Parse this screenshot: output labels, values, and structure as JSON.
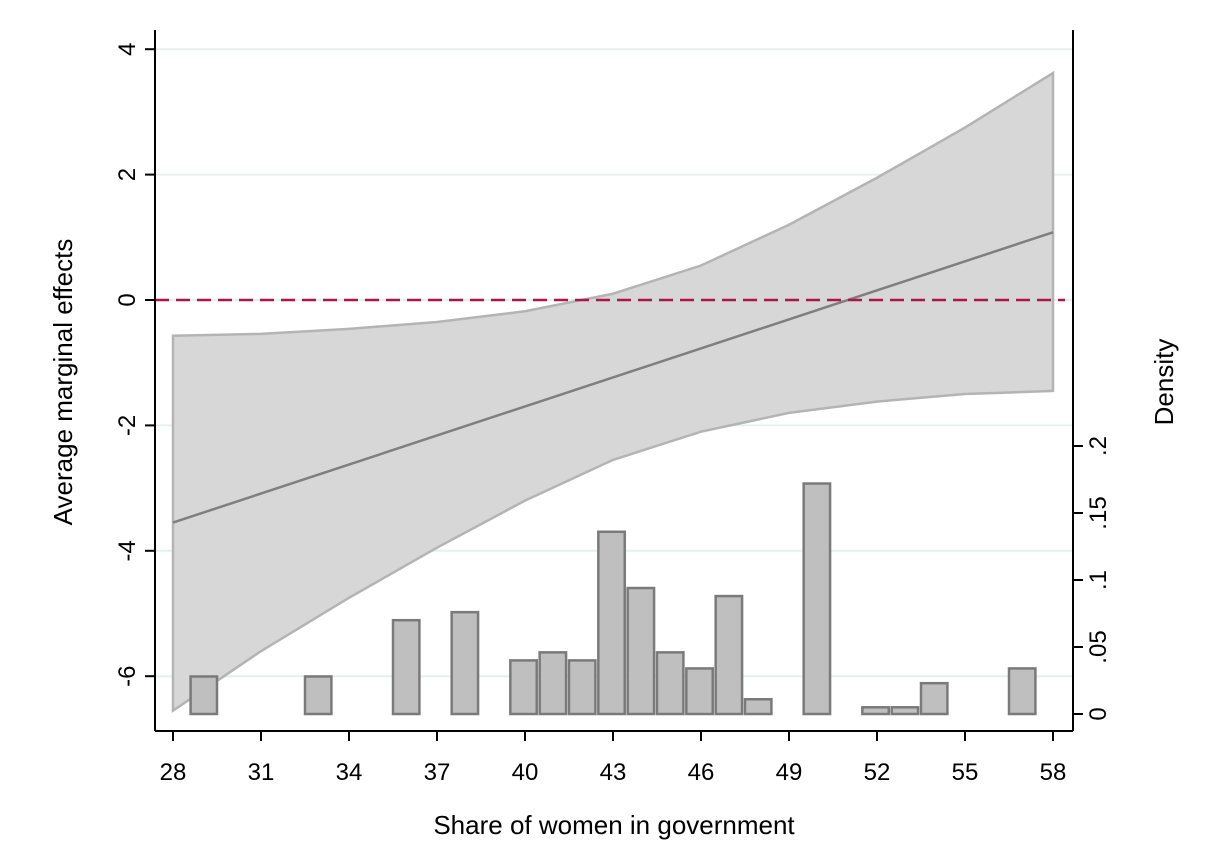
{
  "chart_data": {
    "type": "line",
    "title": "",
    "xlabel": "Share of women in government",
    "ylabel": "Average marginal effects",
    "y2label": "Density",
    "xlim": [
      28,
      58
    ],
    "ylim": [
      -6.6,
      4.2
    ],
    "y2lim": [
      0,
      0.2
    ],
    "x_ticks": [
      "28",
      "31",
      "34",
      "37",
      "40",
      "43",
      "46",
      "49",
      "52",
      "55",
      "58"
    ],
    "y_ticks": [
      "4",
      "2",
      "0",
      "-2",
      "-4",
      "-6"
    ],
    "y2_ticks": [
      "0",
      ".05",
      ".1",
      ".15",
      ".2"
    ],
    "grid": "horizontal",
    "series": [
      {
        "kind": "line",
        "x": [
          28,
          58
        ],
        "y": [
          -3.55,
          1.08
        ]
      },
      {
        "kind": "confidence_band",
        "x": [
          28,
          31,
          34,
          37,
          40,
          43,
          46,
          49,
          52,
          55,
          58
        ],
        "lower": [
          -6.55,
          -5.6,
          -4.75,
          -3.95,
          -3.2,
          -2.55,
          -2.1,
          -1.8,
          -1.62,
          -1.5,
          -1.45
        ],
        "upper": [
          -0.57,
          -0.54,
          -0.46,
          -0.35,
          -0.18,
          0.1,
          0.55,
          1.2,
          1.95,
          2.75,
          3.62
        ]
      },
      {
        "kind": "reference_line",
        "y": 0,
        "style": "dashed"
      },
      {
        "kind": "histogram",
        "axis": "y2",
        "bins": [
          {
            "x0": 28.6,
            "x1": 29.5,
            "density": 0.028
          },
          {
            "x0": 32.5,
            "x1": 33.4,
            "density": 0.028
          },
          {
            "x0": 35.5,
            "x1": 36.4,
            "density": 0.07
          },
          {
            "x0": 37.5,
            "x1": 38.4,
            "density": 0.076
          },
          {
            "x0": 39.5,
            "x1": 40.4,
            "density": 0.04
          },
          {
            "x0": 40.5,
            "x1": 41.4,
            "density": 0.046
          },
          {
            "x0": 41.5,
            "x1": 42.4,
            "density": 0.04
          },
          {
            "x0": 42.5,
            "x1": 43.4,
            "density": 0.136
          },
          {
            "x0": 43.5,
            "x1": 44.4,
            "density": 0.094
          },
          {
            "x0": 44.5,
            "x1": 45.4,
            "density": 0.046
          },
          {
            "x0": 45.5,
            "x1": 46.4,
            "density": 0.034
          },
          {
            "x0": 46.5,
            "x1": 47.4,
            "density": 0.088
          },
          {
            "x0": 47.5,
            "x1": 48.4,
            "density": 0.011
          },
          {
            "x0": 49.5,
            "x1": 50.4,
            "density": 0.172
          },
          {
            "x0": 51.5,
            "x1": 52.4,
            "density": 0.005
          },
          {
            "x0": 52.5,
            "x1": 53.4,
            "density": 0.005
          },
          {
            "x0": 53.5,
            "x1": 54.4,
            "density": 0.023
          },
          {
            "x0": 56.5,
            "x1": 57.4,
            "density": 0.034
          }
        ]
      }
    ],
    "colors": {
      "band_fill": "#d7d7d7",
      "band_edge": "#b4b4b4",
      "line": "#7f7f7f",
      "reference": "#b0124a",
      "bar_fill": "#bfbfbf",
      "bar_edge": "#7a7a7a",
      "grid": "#e6f0ee",
      "axis": "#000000"
    }
  }
}
